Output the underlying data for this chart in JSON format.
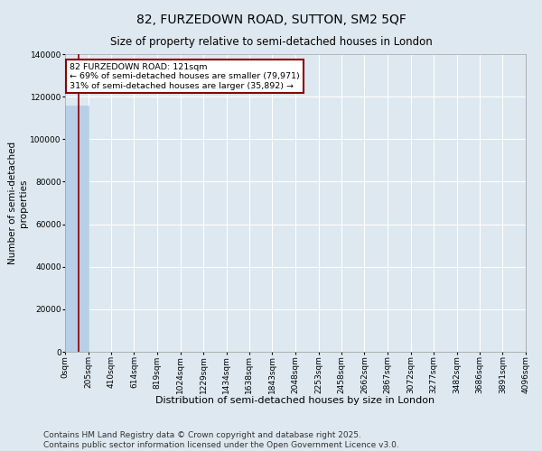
{
  "title": "82, FURZEDOWN ROAD, SUTTON, SM2 5QF",
  "subtitle": "Size of property relative to semi-detached houses in London",
  "xlabel": "Distribution of semi-detached houses by size in London",
  "ylabel": "Number of semi-detached\nproperties",
  "property_size": 121,
  "annotation_text": "82 FURZEDOWN ROAD: 121sqm\n← 69% of semi-detached houses are smaller (79,971)\n31% of semi-detached houses are larger (35,892) →",
  "bar_color": "#b8cfe8",
  "bar_edge_color": "#b8cfe8",
  "vline_color": "#8b0000",
  "annotation_box_color": "#8b0000",
  "background_color": "#dde8f0",
  "grid_color": "#ffffff",
  "fig_background": "#dde8f0",
  "ylim": [
    0,
    140000
  ],
  "yticks": [
    0,
    20000,
    40000,
    60000,
    80000,
    100000,
    120000,
    140000
  ],
  "bin_edges": [
    0,
    205,
    410,
    614,
    819,
    1024,
    1229,
    1434,
    1638,
    1843,
    2048,
    2253,
    2458,
    2662,
    2867,
    3072,
    3277,
    3482,
    3686,
    3891,
    4096
  ],
  "bin_labels": [
    "0sqm",
    "205sqm",
    "410sqm",
    "614sqm",
    "819sqm",
    "1024sqm",
    "1229sqm",
    "1434sqm",
    "1638sqm",
    "1843sqm",
    "2048sqm",
    "2253sqm",
    "2458sqm",
    "2662sqm",
    "2867sqm",
    "3072sqm",
    "3277sqm",
    "3482sqm",
    "3686sqm",
    "3891sqm",
    "4096sqm"
  ],
  "bar_heights": [
    115863,
    0,
    0,
    0,
    0,
    0,
    0,
    0,
    0,
    0,
    0,
    0,
    0,
    0,
    0,
    0,
    0,
    0,
    0,
    0
  ],
  "footnote": "Contains HM Land Registry data © Crown copyright and database right 2025.\nContains public sector information licensed under the Open Government Licence v3.0.",
  "footnote_fontsize": 6.5,
  "title_fontsize": 10,
  "subtitle_fontsize": 8.5,
  "tick_fontsize": 6.5,
  "ylabel_fontsize": 7.5,
  "xlabel_fontsize": 8
}
